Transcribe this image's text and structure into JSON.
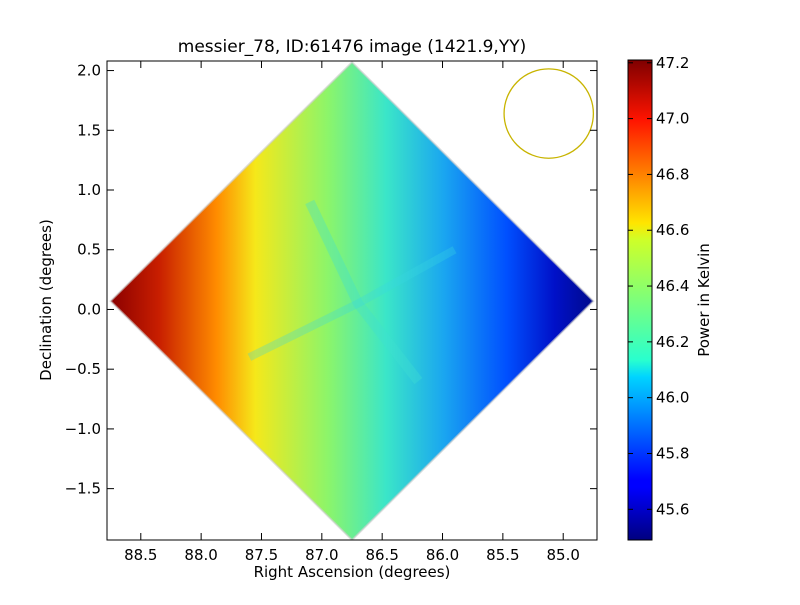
{
  "chart_data": {
    "type": "heatmap",
    "title": "messier_78, ID:61476 image (1421.9,YY)",
    "xlabel": "Right Ascension (degrees)",
    "ylabel": "Declination (degrees)",
    "xlim": [
      88.78,
      84.72
    ],
    "ylim": [
      -1.93,
      2.08
    ],
    "x_ticks": [
      "88.5",
      "88.0",
      "87.5",
      "87.0",
      "86.5",
      "86.0",
      "85.5",
      "85.0"
    ],
    "x_tick_values": [
      88.5,
      88.0,
      87.5,
      87.0,
      86.5,
      86.0,
      85.5,
      85.0
    ],
    "y_ticks": [
      "2.0",
      "1.5",
      "1.0",
      "0.5",
      "0.0",
      "−0.5",
      "−1.0",
      "−1.5"
    ],
    "y_tick_values": [
      2.0,
      1.5,
      1.0,
      0.5,
      0.0,
      -0.5,
      -1.0,
      -1.5
    ],
    "colorbar": {
      "label": "Power in Kelvin",
      "range": [
        45.49,
        47.21
      ],
      "ticks": [
        "47.2",
        "47.0",
        "46.8",
        "46.6",
        "46.4",
        "46.2",
        "46.0",
        "45.8",
        "45.6"
      ],
      "tick_values": [
        47.2,
        47.0,
        46.8,
        46.6,
        46.4,
        46.2,
        46.0,
        45.8,
        45.6
      ],
      "colormap": "jet"
    },
    "field": {
      "shape": "diamond",
      "center": [
        86.75,
        0.07
      ],
      "half_width_ra": 2.0,
      "half_height_dec": 2.0
    },
    "temperature_profile": {
      "ra": [
        88.6,
        88.3,
        88.0,
        87.7,
        87.5,
        87.2,
        86.9,
        86.6,
        86.3,
        86.0,
        85.7,
        85.4,
        85.1,
        84.9
      ],
      "value": [
        47.15,
        47.08,
        46.9,
        46.72,
        46.58,
        46.45,
        46.33,
        46.2,
        46.08,
        45.95,
        45.83,
        45.72,
        45.6,
        45.55
      ]
    },
    "beam_circle": {
      "center": [
        85.12,
        1.64
      ],
      "radius_deg": 0.37,
      "color": "#c8b400"
    }
  }
}
